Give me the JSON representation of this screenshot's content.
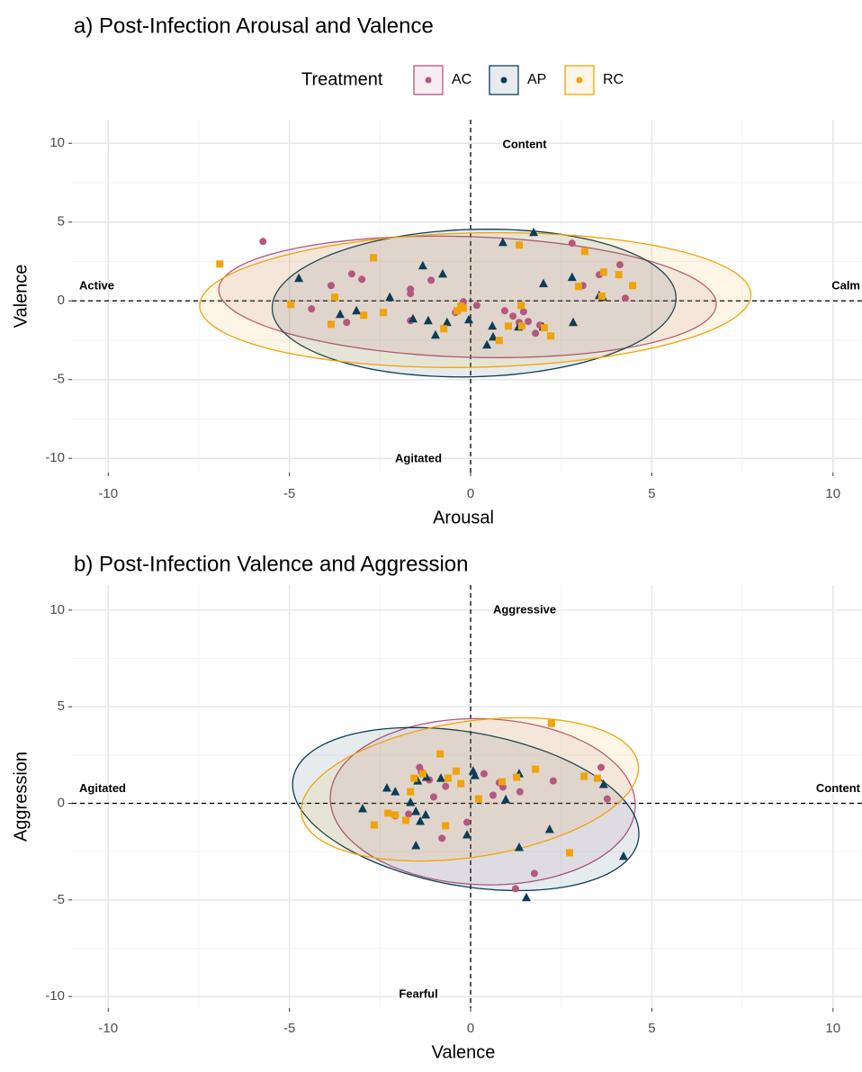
{
  "chart_data": [
    {
      "type": "scatter",
      "title": "a) Post-Infection Arousal and Valence",
      "x_label": "Arousal",
      "y_label": "Valence",
      "legend_title": "Treatment",
      "xlim": [
        -11,
        10.8
      ],
      "ylim": [
        -10.9,
        11.5
      ],
      "xticks": [
        -10,
        -5,
        0,
        5,
        10
      ],
      "yticks": [
        -10,
        -5,
        0,
        5,
        10
      ],
      "grid": true,
      "quadrant_labels": {
        "top": "Content",
        "bottom": "Agitated",
        "left": "Active",
        "right": "Calm"
      },
      "series": [
        {
          "name": "AC",
          "color": "#b5577f",
          "marker": "circle",
          "x": [
            -5.73,
            -3.85,
            -4.39,
            -3.42,
            -3.28,
            -3.0,
            -1.66,
            -1.66,
            -1.66,
            -1.09,
            -0.42,
            -0.2,
            0.17,
            0.94,
            1.17,
            1.46,
            1.34,
            1.59,
            1.79,
            1.91,
            2.8,
            3.1,
            4.12,
            4.27,
            3.55
          ],
          "y": [
            3.77,
            0.97,
            -0.51,
            -1.37,
            1.71,
            1.37,
            0.74,
            0.46,
            -1.26,
            1.31,
            -0.74,
            -0.06,
            -0.29,
            -0.63,
            -0.97,
            -0.69,
            -1.37,
            -1.31,
            -2.06,
            -1.54,
            3.66,
            0.97,
            2.29,
            0.17,
            1.66
          ]
        },
        {
          "name": "AP",
          "color": "#0d3d56",
          "marker": "triangle",
          "x": [
            -4.74,
            -3.6,
            -3.15,
            -2.23,
            -1.32,
            -1.59,
            -1.17,
            -0.65,
            -0.97,
            -0.77,
            -0.05,
            0.45,
            0.62,
            0.6,
            0.89,
            1.32,
            1.74,
            2.01,
            2.0,
            2.8,
            2.83,
            3.55,
            3.65
          ],
          "y": [
            1.43,
            -0.86,
            -0.63,
            0.23,
            2.23,
            -1.14,
            -1.26,
            -1.37,
            -2.17,
            1.71,
            -1.2,
            -2.8,
            -2.29,
            -1.6,
            3.71,
            -1.66,
            4.34,
            1.09,
            -1.66,
            1.49,
            -1.37,
            0.34,
            0.23
          ]
        },
        {
          "name": "RC",
          "color": "#f0a30a",
          "marker": "square",
          "x": [
            -6.92,
            -4.96,
            -3.75,
            -3.85,
            -2.95,
            -2.68,
            -2.41,
            -0.74,
            -0.37,
            -0.27,
            -0.2,
            0.79,
            1.04,
            1.34,
            1.39,
            1.41,
            2.03,
            2.21,
            3.15,
            2.98,
            3.67,
            3.62,
            4.09,
            4.47
          ],
          "y": [
            2.34,
            -0.23,
            0.23,
            -1.49,
            -0.91,
            2.74,
            -0.74,
            -1.77,
            -0.63,
            -0.34,
            -0.46,
            -2.51,
            -1.6,
            3.54,
            -0.29,
            -1.6,
            -1.71,
            -2.23,
            3.14,
            0.91,
            1.83,
            0.29,
            1.66,
            0.97
          ]
        }
      ]
    },
    {
      "type": "scatter",
      "title": "b) Post-Infection Valence and Aggression",
      "x_label": "Valence",
      "y_label": "Aggression",
      "xlim": [
        -11,
        10.8
      ],
      "ylim": [
        -10.6,
        11.3
      ],
      "xticks": [
        -10,
        -5,
        0,
        5,
        10
      ],
      "yticks": [
        -10,
        -5,
        0,
        5,
        10
      ],
      "grid": true,
      "quadrant_labels": {
        "top": "Aggressive",
        "bottom": "Fearful",
        "left": "Agitated",
        "right": "Content"
      },
      "series": [
        {
          "x": [
            -1.41,
            -1.36,
            -1.14,
            -1.02,
            -0.69,
            -0.79,
            -0.1,
            0.37,
            0.62,
            0.79,
            0.89,
            1.36,
            1.24,
            1.76,
            2.28,
            3.6,
            3.77,
            -2.08,
            -1.71
          ],
          "y": [
            1.86,
            1.63,
            1.21,
            0.33,
            0.88,
            -1.81,
            -0.98,
            1.53,
            0.42,
            1.07,
            0.84,
            0.6,
            -4.42,
            -3.63,
            1.16,
            1.86,
            0.23,
            -0.65,
            -0.56
          ]
        },
        {
          "x": [
            -2.98,
            -2.31,
            -2.08,
            -1.66,
            -1.51,
            -1.51,
            -1.39,
            -1.22,
            -0.82,
            0.07,
            0.12,
            -0.1,
            0.97,
            1.34,
            1.34,
            1.54,
            2.18,
            3.67,
            4.22,
            -1.24,
            -1.46
          ],
          "y": [
            -0.28,
            0.79,
            0.6,
            0.05,
            -0.42,
            -2.19,
            -0.93,
            1.35,
            1.3,
            1.67,
            1.44,
            -1.63,
            0.19,
            1.53,
            -2.28,
            -4.88,
            -1.35,
            0.98,
            -2.74,
            -0.6,
            1.16
          ]
        },
        {
          "x": [
            -2.66,
            -2.28,
            -2.08,
            -1.79,
            -1.66,
            -1.56,
            -1.32,
            -0.84,
            -0.69,
            -0.62,
            -0.4,
            -0.27,
            0.22,
            0.87,
            1.27,
            1.79,
            2.23,
            2.73,
            3.13,
            3.5
          ],
          "y": [
            -1.12,
            -0.51,
            -0.6,
            -0.88,
            0.6,
            1.3,
            1.53,
            2.56,
            -1.16,
            1.3,
            1.67,
            1.02,
            0.23,
            1.12,
            1.35,
            1.77,
            4.14,
            -2.56,
            1.4,
            1.3
          ]
        }
      ]
    }
  ]
}
